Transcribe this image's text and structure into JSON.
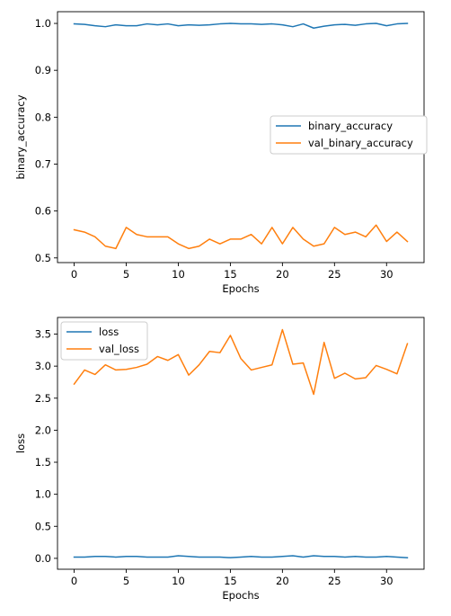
{
  "chart_data": [
    {
      "type": "line",
      "xlabel": "Epochs",
      "ylabel": "binary_accuracy",
      "xlim": [
        -1.6,
        33.6
      ],
      "ylim": [
        0.49,
        1.025
      ],
      "xticks": [
        0,
        5,
        10,
        15,
        20,
        25,
        30
      ],
      "xtick_labels": [
        "0",
        "5",
        "10",
        "15",
        "20",
        "25",
        "30"
      ],
      "yticks": [
        0.5,
        0.6,
        0.7,
        0.8,
        0.9,
        1.0
      ],
      "ytick_labels": [
        "0.5",
        "0.6",
        "0.7",
        "0.8",
        "0.9",
        "1.0"
      ],
      "legend": "center-right",
      "grid": false,
      "x": [
        0,
        1,
        2,
        3,
        4,
        5,
        6,
        7,
        8,
        9,
        10,
        11,
        12,
        13,
        14,
        15,
        16,
        17,
        18,
        19,
        20,
        21,
        22,
        23,
        24,
        25,
        26,
        27,
        28,
        29,
        30,
        31,
        32
      ],
      "series": [
        {
          "name": "binary_accuracy",
          "color": "#1f77b4",
          "values": [
            0.999,
            0.998,
            0.995,
            0.993,
            0.997,
            0.995,
            0.995,
            0.999,
            0.997,
            0.999,
            0.995,
            0.997,
            0.996,
            0.997,
            0.999,
            1.0,
            0.999,
            0.999,
            0.998,
            0.999,
            0.997,
            0.993,
            0.999,
            0.99,
            0.994,
            0.997,
            0.998,
            0.996,
            0.999,
            1.0,
            0.995,
            0.999,
            1.0
          ]
        },
        {
          "name": "val_binary_accuracy",
          "color": "#ff7f0e",
          "values": [
            0.56,
            0.555,
            0.545,
            0.525,
            0.52,
            0.565,
            0.55,
            0.545,
            0.545,
            0.545,
            0.53,
            0.52,
            0.525,
            0.54,
            0.53,
            0.54,
            0.54,
            0.55,
            0.53,
            0.565,
            0.53,
            0.565,
            0.54,
            0.525,
            0.53,
            0.565,
            0.55,
            0.555,
            0.545,
            0.57,
            0.535,
            0.555,
            0.535
          ]
        }
      ]
    },
    {
      "type": "line",
      "xlabel": "Epochs",
      "ylabel": "loss",
      "xlim": [
        -1.6,
        33.6
      ],
      "ylim": [
        -0.17,
        3.76
      ],
      "xticks": [
        0,
        5,
        10,
        15,
        20,
        25,
        30
      ],
      "xtick_labels": [
        "0",
        "5",
        "10",
        "15",
        "20",
        "25",
        "30"
      ],
      "yticks": [
        0.0,
        0.5,
        1.0,
        1.5,
        2.0,
        2.5,
        3.0,
        3.5
      ],
      "ytick_labels": [
        "0.0",
        "0.5",
        "1.0",
        "1.5",
        "2.0",
        "2.5",
        "3.0",
        "3.5"
      ],
      "legend": "top-left",
      "grid": false,
      "x": [
        0,
        1,
        2,
        3,
        4,
        5,
        6,
        7,
        8,
        9,
        10,
        11,
        12,
        13,
        14,
        15,
        16,
        17,
        18,
        19,
        20,
        21,
        22,
        23,
        24,
        25,
        26,
        27,
        28,
        29,
        30,
        31,
        32
      ],
      "series": [
        {
          "name": "loss",
          "color": "#1f77b4",
          "values": [
            0.02,
            0.02,
            0.03,
            0.03,
            0.02,
            0.03,
            0.03,
            0.02,
            0.02,
            0.02,
            0.04,
            0.03,
            0.02,
            0.02,
            0.02,
            0.01,
            0.02,
            0.03,
            0.02,
            0.02,
            0.03,
            0.04,
            0.02,
            0.04,
            0.03,
            0.03,
            0.02,
            0.03,
            0.02,
            0.02,
            0.03,
            0.02,
            0.01
          ]
        },
        {
          "name": "val_loss",
          "color": "#ff7f0e",
          "values": [
            2.72,
            2.94,
            2.87,
            3.02,
            2.94,
            2.95,
            2.98,
            3.03,
            3.15,
            3.09,
            3.18,
            2.86,
            3.02,
            3.23,
            3.21,
            3.48,
            3.12,
            2.94,
            2.98,
            3.02,
            3.57,
            3.03,
            3.05,
            2.56,
            3.37,
            2.81,
            2.89,
            2.8,
            2.82,
            3.01,
            2.95,
            2.88,
            3.35
          ]
        }
      ]
    }
  ]
}
